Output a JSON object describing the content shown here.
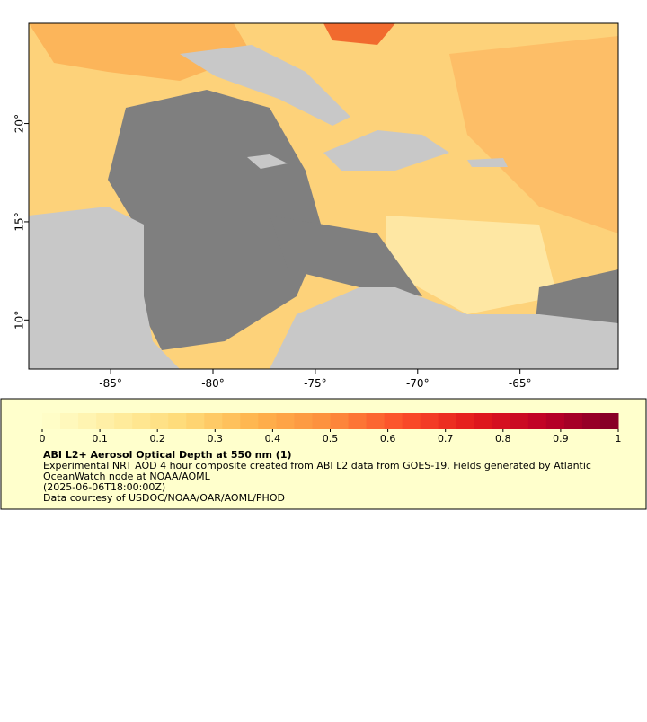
{
  "map": {
    "xlim": [
      -89,
      -60.2
    ],
    "ylim": [
      7.5,
      25.1
    ],
    "xticks": [
      {
        "value": -85,
        "label": "-85°"
      },
      {
        "value": -80,
        "label": "-80°"
      },
      {
        "value": -75,
        "label": "-75°"
      },
      {
        "value": -70,
        "label": "-70°"
      },
      {
        "value": -65,
        "label": "-65°"
      }
    ],
    "yticks": [
      {
        "value": 10,
        "label": "10°"
      },
      {
        "value": 15,
        "label": "15°"
      },
      {
        "value": 20,
        "label": "20°"
      }
    ]
  },
  "colorbar": {
    "clim": [
      0,
      1
    ],
    "ticks": [
      0,
      0.1,
      0.2,
      0.3,
      0.4,
      0.5,
      0.6,
      0.7,
      0.8,
      0.9,
      1
    ],
    "colors": [
      "#ffffcc",
      "#ffeda0",
      "#fed976",
      "#feb24c",
      "#fd8d3c",
      "#fc4e2a",
      "#e31a1c",
      "#bd0026",
      "#800026"
    ],
    "title": "ABI L2+ Aerosol Optical Depth at 550 nm (1)",
    "lines": [
      "Experimental NRT AOD 4 hour composite created from ABI L2 data from GOES-19. Fields generated by Atlantic",
      "OceanWatch node at NOAA/AOML",
      "(2025-06-06T18:00:00Z)",
      "Data courtesy of USDOC/NOAA/OAR/AOML/PHOD"
    ]
  }
}
